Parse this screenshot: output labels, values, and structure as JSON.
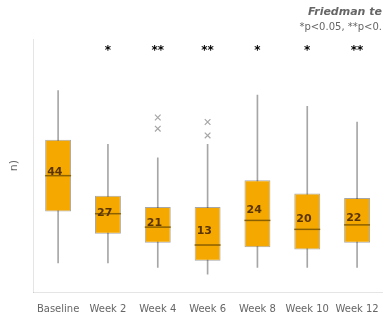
{
  "chart_data": {
    "type": "boxplot",
    "categories": [
      "Baseline",
      "Week 2",
      "Week 4",
      "Week 6",
      "Week 8",
      "Week 10",
      "Week 12"
    ],
    "medians": [
      44,
      27,
      21,
      13,
      24,
      20,
      22
    ],
    "q1": [
      28,
      18,
      14,
      6,
      12,
      11,
      14
    ],
    "q3": [
      60,
      35,
      30,
      30,
      42,
      36,
      34
    ],
    "whisker_low": [
      5,
      5,
      3,
      0,
      3,
      3,
      3
    ],
    "whisker_high": [
      82,
      58,
      52,
      58,
      80,
      75,
      68
    ],
    "outliers": [
      [],
      [],
      [
        65,
        70
      ],
      [
        62,
        68
      ],
      [],
      [],
      []
    ],
    "significance": [
      null,
      "*",
      "**",
      "**",
      "*",
      "*",
      "**"
    ],
    "annotations": [
      "Friedman te",
      "*p<0.05, **p<0."
    ],
    "ylabel": "n)",
    "color": "#F5A800",
    "ylim": [
      -8,
      105
    ],
    "grid": false,
    "tick_labels": "x",
    "data_labels": true
  }
}
